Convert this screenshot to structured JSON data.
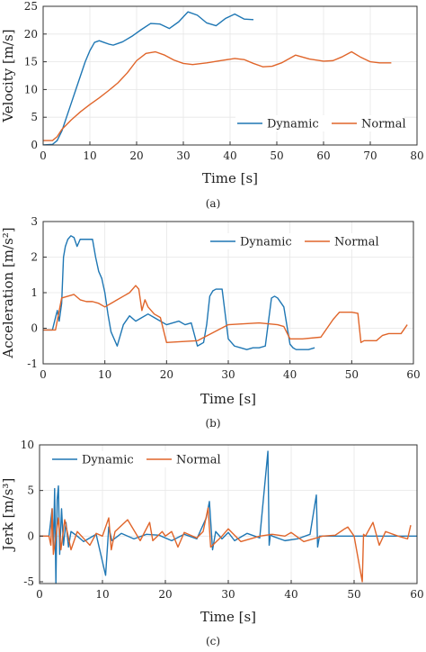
{
  "colors": {
    "dynamic": "#1f77b4",
    "normal": "#e0652a"
  },
  "chart_data": [
    {
      "type": "line",
      "panel": "(a)",
      "title": "",
      "xlabel": "Time [s]",
      "ylabel": "Velocity [m/s]",
      "xlim": [
        0,
        80
      ],
      "ylim": [
        0,
        25
      ],
      "xticks": [
        0,
        10,
        20,
        30,
        40,
        50,
        60,
        70,
        80
      ],
      "yticks": [
        0,
        5,
        10,
        15,
        20,
        25
      ],
      "grid": true,
      "legend": {
        "placement": "bottom-right",
        "layout": "horizontal"
      },
      "series": [
        {
          "name": "Dynamic",
          "color": "#1f77b4",
          "x": [
            0,
            2,
            3,
            4,
            5,
            6,
            7,
            8,
            9,
            10,
            11,
            12,
            13,
            14,
            15,
            17,
            19,
            21,
            23,
            25,
            27,
            29,
            31,
            33,
            35,
            37,
            39,
            41,
            43,
            45
          ],
          "y": [
            0,
            0.1,
            0.8,
            2.5,
            5.0,
            7.5,
            10.0,
            12.5,
            15.0,
            17.0,
            18.5,
            18.8,
            18.5,
            18.2,
            18.0,
            18.6,
            19.6,
            20.8,
            21.9,
            21.8,
            21.0,
            22.2,
            24.0,
            23.4,
            22.0,
            21.5,
            22.8,
            23.6,
            22.7,
            22.6
          ]
        },
        {
          "name": "Normal",
          "color": "#e0652a",
          "x": [
            0,
            2,
            3,
            4,
            6,
            8,
            10,
            12,
            14,
            16,
            18,
            20,
            22,
            24,
            26,
            28,
            30,
            32,
            35,
            38,
            41,
            43,
            45,
            47,
            49,
            51,
            54,
            57,
            60,
            62,
            64,
            66,
            68,
            70,
            72,
            74.5
          ],
          "y": [
            0.8,
            0.8,
            1.5,
            2.8,
            4.5,
            6.0,
            7.3,
            8.5,
            9.8,
            11.2,
            13.0,
            15.2,
            16.5,
            16.8,
            16.2,
            15.3,
            14.7,
            14.5,
            14.8,
            15.2,
            15.6,
            15.4,
            14.7,
            14.1,
            14.2,
            14.8,
            16.2,
            15.5,
            15.1,
            15.2,
            15.9,
            16.8,
            15.8,
            15.0,
            14.8,
            14.8
          ]
        }
      ]
    },
    {
      "type": "line",
      "panel": "(b)",
      "title": "",
      "xlabel": "Time [s]",
      "ylabel": "Acceleration [m/s²]",
      "xlim": [
        0,
        60
      ],
      "ylim": [
        -1,
        3
      ],
      "xticks": [
        0,
        10,
        20,
        30,
        40,
        50,
        60
      ],
      "yticks": [
        -1,
        0,
        1,
        2,
        3
      ],
      "grid": true,
      "legend": {
        "placement": "top-right",
        "layout": "horizontal"
      },
      "series": [
        {
          "name": "Dynamic",
          "color": "#1f77b4",
          "x": [
            0,
            1.5,
            2,
            2.3,
            2.6,
            3,
            3.3,
            3.6,
            4,
            4.5,
            5,
            5.5,
            6,
            7,
            8,
            8.5,
            9,
            9.5,
            10,
            10.5,
            11,
            12,
            13,
            14,
            15,
            16,
            17,
            18,
            19,
            20,
            21,
            22,
            23,
            24,
            25,
            26,
            26.5,
            27,
            27.5,
            28,
            29,
            30,
            31,
            32,
            33,
            34,
            35,
            36,
            37,
            37.5,
            38,
            39,
            40,
            40.5,
            41,
            42,
            43,
            44
          ],
          "y": [
            -0.05,
            -0.05,
            0.3,
            0.5,
            0.2,
            0.7,
            2.0,
            2.3,
            2.5,
            2.6,
            2.55,
            2.3,
            2.5,
            2.5,
            2.5,
            2.0,
            1.6,
            1.4,
            1.0,
            0.4,
            -0.1,
            -0.5,
            0.1,
            0.35,
            0.2,
            0.3,
            0.4,
            0.3,
            0.2,
            0.1,
            0.15,
            0.2,
            0.1,
            0.15,
            -0.5,
            -0.4,
            0.1,
            0.9,
            1.05,
            1.1,
            1.1,
            -0.3,
            -0.5,
            -0.55,
            -0.6,
            -0.55,
            -0.55,
            -0.5,
            0.85,
            0.9,
            0.85,
            0.6,
            -0.45,
            -0.55,
            -0.6,
            -0.6,
            -0.6,
            -0.55
          ]
        },
        {
          "name": "Normal",
          "color": "#e0652a",
          "x": [
            0,
            2,
            3,
            4,
            5,
            6,
            7,
            8,
            9,
            10,
            11,
            12,
            13,
            14,
            15,
            15.5,
            16,
            16.5,
            17,
            18,
            19,
            20,
            25,
            30,
            35,
            38,
            39,
            40,
            42,
            45,
            47,
            47.5,
            48,
            49,
            50,
            51,
            51.5,
            52,
            53,
            54,
            55,
            56,
            58,
            59
          ],
          "y": [
            -0.05,
            -0.05,
            0.85,
            0.9,
            0.95,
            0.8,
            0.75,
            0.75,
            0.7,
            0.6,
            0.7,
            0.8,
            0.9,
            1.0,
            1.2,
            1.1,
            0.5,
            0.8,
            0.6,
            0.4,
            0.3,
            -0.4,
            -0.35,
            0.1,
            0.15,
            0.1,
            0.05,
            -0.3,
            -0.3,
            -0.25,
            0.25,
            0.35,
            0.45,
            0.45,
            0.45,
            0.42,
            -0.4,
            -0.35,
            -0.35,
            -0.35,
            -0.2,
            -0.15,
            -0.15,
            0.1
          ]
        }
      ]
    },
    {
      "type": "line",
      "panel": "(c)",
      "title": "",
      "xlabel": "Time [s]",
      "ylabel": "Jerk [m/s³]",
      "xlim": [
        0,
        60
      ],
      "ylim": [
        -5.2,
        10
      ],
      "xticks": [
        0,
        10,
        20,
        30,
        40,
        50,
        60
      ],
      "yticks": [
        -5,
        0,
        5,
        10
      ],
      "grid": true,
      "legend": {
        "placement": "top-left",
        "layout": "horizontal"
      },
      "series": [
        {
          "name": "Dynamic",
          "color": "#1f77b4",
          "x": [
            0,
            1.5,
            2.0,
            2.2,
            2.4,
            2.6,
            2.8,
            3.0,
            3.2,
            3.5,
            3.8,
            4.2,
            4.6,
            5.0,
            6,
            7,
            9,
            10.5,
            11,
            11.5,
            13,
            15,
            17,
            19,
            21,
            23,
            25,
            26.5,
            27,
            27.5,
            28,
            29,
            30,
            31,
            33,
            35,
            36.3,
            36.5,
            36.7,
            37,
            39,
            41,
            43,
            44.0,
            44.2,
            44.5,
            46,
            50,
            55,
            60
          ],
          "y": [
            0,
            0,
            3.0,
            -1.5,
            5.2,
            -5.2,
            4.0,
            5.5,
            -2.0,
            3.0,
            -1.0,
            1.5,
            -1.2,
            0.5,
            0,
            -0.6,
            0.2,
            -4.3,
            1.0,
            -0.5,
            0.3,
            -0.3,
            0.2,
            0.1,
            -0.5,
            0.2,
            -0.3,
            2.0,
            3.8,
            -1.5,
            0.5,
            -0.3,
            0.4,
            -0.5,
            0.3,
            -0.2,
            9.3,
            -1.0,
            0.2,
            0,
            -0.5,
            -0.3,
            0.2,
            4.5,
            -1.2,
            0,
            0,
            0,
            0,
            0
          ]
        },
        {
          "name": "Normal",
          "color": "#e0652a",
          "x": [
            0,
            1.5,
            1.8,
            2.0,
            2.2,
            3.0,
            3.4,
            4.0,
            5.0,
            6,
            8,
            9,
            10,
            11.0,
            11.4,
            12,
            14,
            16,
            17.5,
            18,
            19.5,
            20,
            21,
            22,
            23,
            25,
            26,
            26.8,
            27.2,
            29,
            30,
            32,
            35,
            37,
            39,
            40,
            42,
            45,
            47,
            48.5,
            49.0,
            50,
            51.3,
            51.5,
            51.8,
            53,
            54,
            55,
            57,
            58.5,
            59.0
          ],
          "y": [
            0,
            0,
            -1.0,
            3.0,
            -2.0,
            2.0,
            -1.5,
            1.8,
            -1.5,
            0.5,
            -1.0,
            0.3,
            0,
            2.0,
            -1.5,
            0.5,
            1.8,
            -0.5,
            1.5,
            -0.5,
            0.5,
            0,
            0.5,
            -1.2,
            0.4,
            -0.2,
            0.5,
            3.1,
            -1.2,
            0,
            0.8,
            -0.6,
            0,
            0.2,
            0,
            0.4,
            -0.6,
            0,
            0.1,
            0.8,
            1.0,
            0,
            -5.0,
            0.2,
            0,
            1.5,
            -1.0,
            0.5,
            0,
            -0.3,
            1.2
          ]
        }
      ]
    }
  ]
}
